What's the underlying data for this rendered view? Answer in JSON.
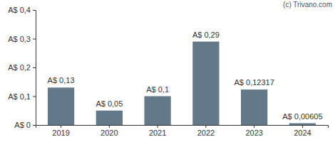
{
  "chart_data": {
    "type": "bar",
    "annotations": [
      "(c) Trivano.com"
    ],
    "categories": [
      "2019",
      "2020",
      "2021",
      "2022",
      "2023",
      "2024"
    ],
    "values": [
      0.13,
      0.05,
      0.1,
      0.29,
      0.12317,
      0.00605
    ],
    "value_labels": [
      "A$ 0,13",
      "A$ 0,05",
      "A$ 0,1",
      "A$ 0,29",
      "A$ 0,12317",
      "A$ 0,00605"
    ],
    "color": "#637888",
    "ylim": [
      0,
      0.4
    ],
    "yticks": [
      {
        "value": 0,
        "label": "A$ 0"
      },
      {
        "value": 0.1,
        "label": "A$ 0,1"
      },
      {
        "value": 0.2,
        "label": "A$ 0,2"
      },
      {
        "value": 0.3,
        "label": "A$ 0,3"
      },
      {
        "value": 0.4,
        "label": "A$ 0,4"
      }
    ],
    "grid": false,
    "data_labels": true
  }
}
